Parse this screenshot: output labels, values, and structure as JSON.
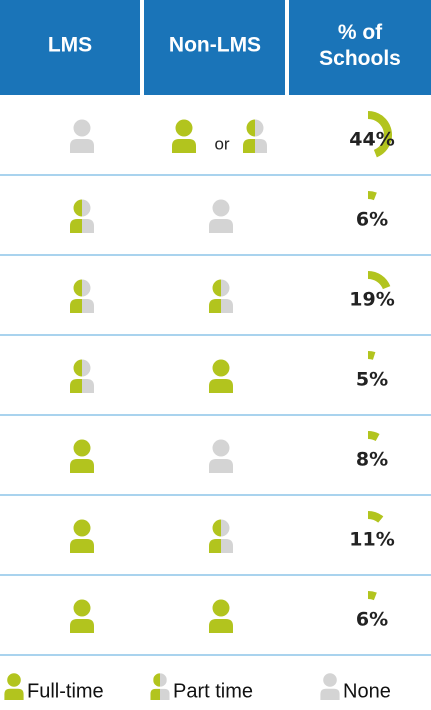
{
  "header": {
    "columns": [
      "LMS",
      "Non-LMS",
      "% of Schools"
    ]
  },
  "table": {
    "rows": [
      {
        "lms": [
          2
        ],
        "non_lms": [
          0,
          1
        ],
        "joiner": "or",
        "pct": 44,
        "pct_label": "44%"
      },
      {
        "lms": [
          1
        ],
        "non_lms": [
          2
        ],
        "pct": 6,
        "pct_label": "6%"
      },
      {
        "lms": [
          1
        ],
        "non_lms": [
          1
        ],
        "pct": 19,
        "pct_label": "19%"
      },
      {
        "lms": [
          1
        ],
        "non_lms": [
          0
        ],
        "pct": 5,
        "pct_label": "5%"
      },
      {
        "lms": [
          0
        ],
        "non_lms": [
          2
        ],
        "pct": 8,
        "pct_label": "8%"
      },
      {
        "lms": [
          0
        ],
        "non_lms": [
          1
        ],
        "pct": 11,
        "pct_label": "11%"
      },
      {
        "lms": [
          0
        ],
        "non_lms": [
          0
        ],
        "pct": 6,
        "pct_label": "6%"
      }
    ]
  },
  "legend": [
    "Full-time",
    "Part time",
    "None"
  ]
}
